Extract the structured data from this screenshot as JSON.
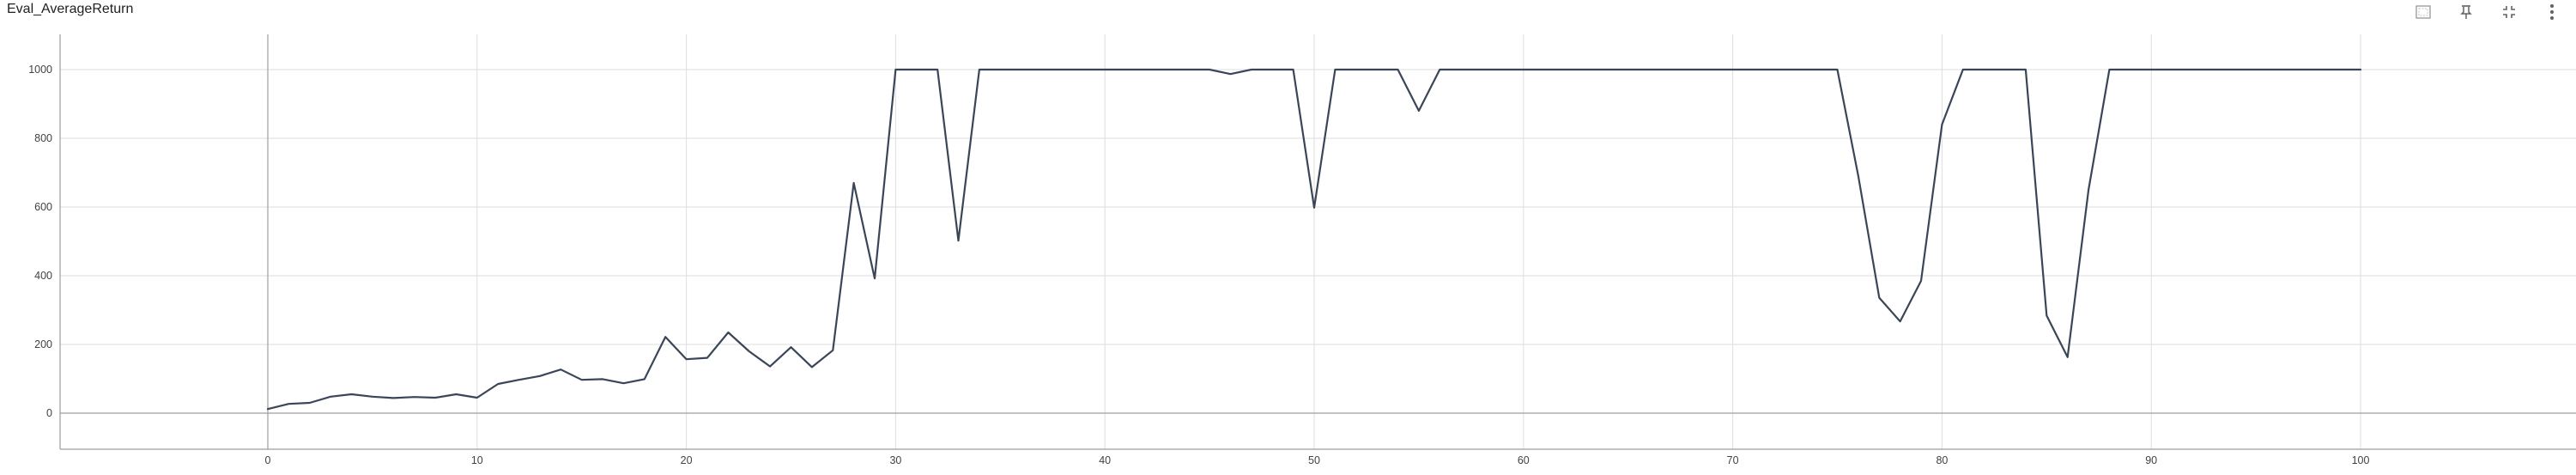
{
  "header": {
    "title": "Eval_AverageReturn",
    "toolbar": [
      {
        "icon": "expand-chart-icon"
      },
      {
        "icon": "pin-icon"
      },
      {
        "icon": "fit-domain-icon"
      },
      {
        "icon": "more-vert-icon"
      }
    ]
  },
  "colors": {
    "line": "#3a4658",
    "grid": "#dedede",
    "axis": "#9e9e9e"
  },
  "chart_data": {
    "type": "line",
    "title": "Eval_AverageReturn",
    "xlabel": "",
    "ylabel": "",
    "xlim": [
      -10,
      109
    ],
    "ylim": [
      -105,
      1105
    ],
    "xticks": [
      0,
      10,
      20,
      30,
      40,
      50,
      60,
      70,
      80,
      90,
      100
    ],
    "yticks": [
      0,
      200,
      400,
      600,
      800,
      1000
    ],
    "grid": true,
    "legend": "none",
    "series": [
      {
        "x": [
          0,
          1,
          2,
          3,
          4,
          5,
          6,
          7,
          8,
          9,
          10,
          11,
          12,
          13,
          14,
          15,
          16,
          17,
          18,
          19,
          20,
          21,
          22,
          23,
          24,
          25,
          26,
          27,
          28,
          29,
          30,
          31,
          32,
          33,
          34,
          35,
          36,
          37,
          38,
          39,
          40,
          41,
          42,
          43,
          44,
          45,
          46,
          47,
          48,
          49,
          50,
          51,
          52,
          53,
          54,
          55,
          56,
          57,
          58,
          59,
          60,
          61,
          62,
          63,
          64,
          65,
          66,
          67,
          68,
          69,
          70,
          71,
          72,
          73,
          74,
          75,
          76,
          77,
          78,
          79,
          80,
          81,
          82,
          83,
          84,
          85,
          86,
          87,
          88,
          89,
          90,
          91,
          92,
          93,
          94,
          95,
          96,
          97,
          98,
          99,
          100
        ],
        "y": [
          12,
          27,
          30,
          48,
          55,
          48,
          44,
          47,
          45,
          55,
          45,
          85,
          97,
          108,
          127,
          97,
          99,
          87,
          99,
          222,
          157,
          161,
          235,
          180,
          136,
          192,
          134,
          183,
          670,
          392,
          1000,
          1000,
          1000,
          502,
          1000,
          1000,
          1000,
          1000,
          1000,
          1000,
          1000,
          1000,
          1000,
          1000,
          1000,
          1000,
          987,
          1000,
          1000,
          1000,
          598,
          1000,
          1000,
          1000,
          1000,
          880,
          1000,
          1000,
          1000,
          1000,
          1000,
          1000,
          1000,
          1000,
          1000,
          1000,
          1000,
          1000,
          1000,
          1000,
          1000,
          1000,
          1000,
          1000,
          1000,
          1000,
          690,
          336,
          267,
          385,
          840,
          1000,
          1000,
          1000,
          1000,
          284,
          163,
          650,
          1000,
          1000,
          1000,
          1000,
          1000,
          1000,
          1000,
          1000,
          1000,
          1000,
          1000,
          1000,
          1000
        ]
      }
    ]
  }
}
